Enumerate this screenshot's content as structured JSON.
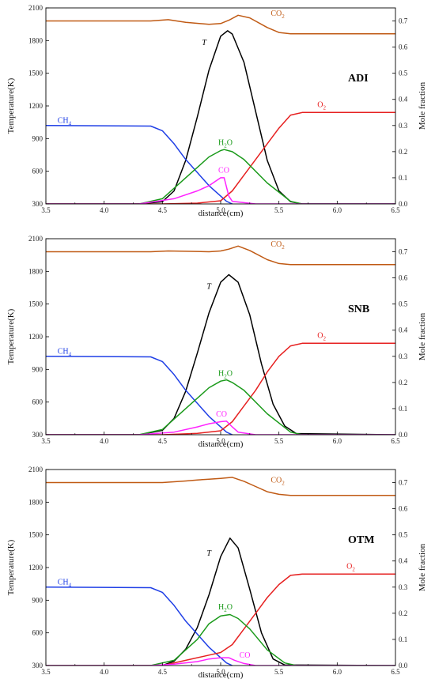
{
  "chart_data": [
    {
      "type": "line",
      "panel_label": "ADI",
      "xlabel": "distance(cm)",
      "ylabel_left": "Temperature(K)",
      "ylabel_right": "Mole fraction",
      "xlim": [
        3.5,
        6.5
      ],
      "xticks": [
        "3.5",
        "4.0",
        "4.5",
        "5.0",
        "5.5",
        "6.0",
        "6.5"
      ],
      "ylim_left": [
        300,
        2100
      ],
      "yticks_left": [
        "300",
        "600",
        "900",
        "1200",
        "1500",
        "1800",
        "2100"
      ],
      "ylim_right": [
        0,
        0.75
      ],
      "yticks_right": [
        "0.0",
        "0.1",
        "0.2",
        "0.3",
        "0.4",
        "0.5",
        "0.6",
        "0.7"
      ],
      "grid": false,
      "series": [
        {
          "name": "T",
          "axis": "left",
          "color": "#000000",
          "label": {
            "text": "T",
            "italic": true
          },
          "x": [
            3.5,
            4.3,
            4.5,
            4.6,
            4.7,
            4.8,
            4.9,
            5.0,
            5.06,
            5.1,
            5.2,
            5.3,
            5.4,
            5.5,
            5.6,
            5.7,
            6.5
          ],
          "y": [
            300,
            300,
            320,
            420,
            700,
            1100,
            1530,
            1840,
            1890,
            1860,
            1600,
            1150,
            700,
            420,
            320,
            300,
            300
          ]
        },
        {
          "name": "CH4",
          "axis": "right",
          "color": "#1f3fe6",
          "label": {
            "text": "CH",
            "sub": "4"
          },
          "x": [
            3.5,
            4.4,
            4.5,
            4.6,
            4.7,
            4.8,
            4.9,
            5.0,
            5.05,
            5.1
          ],
          "y": [
            0.3,
            0.298,
            0.28,
            0.23,
            0.17,
            0.12,
            0.07,
            0.03,
            0.01,
            0.0
          ]
        },
        {
          "name": "O2",
          "axis": "right",
          "color": "#e62020",
          "label": {
            "text": "O",
            "sub": "2"
          },
          "x": [
            3.5,
            4.5,
            4.8,
            5.0,
            5.1,
            5.2,
            5.3,
            5.4,
            5.5,
            5.6,
            5.7,
            6.5
          ],
          "y": [
            0.0,
            0.0,
            0.003,
            0.012,
            0.05,
            0.11,
            0.17,
            0.23,
            0.29,
            0.34,
            0.35,
            0.35
          ]
        },
        {
          "name": "CO2",
          "axis": "right",
          "color": "#c05a14",
          "label": {
            "text": "CO",
            "sub": "2"
          },
          "x": [
            3.5,
            4.4,
            4.55,
            4.7,
            4.9,
            5.0,
            5.08,
            5.15,
            5.25,
            5.4,
            5.5,
            5.6,
            6.5
          ],
          "y": [
            0.7,
            0.7,
            0.705,
            0.695,
            0.687,
            0.69,
            0.705,
            0.722,
            0.712,
            0.675,
            0.656,
            0.651,
            0.651
          ]
        },
        {
          "name": "H2O",
          "axis": "right",
          "color": "#1a9a1a",
          "label": {
            "text": "H",
            "sub": "2",
            "after": "O"
          },
          "x": [
            3.5,
            4.3,
            4.5,
            4.7,
            4.9,
            5.0,
            5.03,
            5.1,
            5.2,
            5.4,
            5.6,
            5.7,
            6.5
          ],
          "y": [
            0.0,
            0.0,
            0.02,
            0.1,
            0.18,
            0.204,
            0.208,
            0.2,
            0.17,
            0.08,
            0.01,
            0.0,
            0.0
          ]
        },
        {
          "name": "CO",
          "axis": "right",
          "color": "#ff22ff",
          "label": {
            "text": "CO"
          },
          "x": [
            3.5,
            4.3,
            4.6,
            4.8,
            4.9,
            5.0,
            5.03,
            5.07,
            5.1,
            5.3,
            6.5
          ],
          "y": [
            0.0,
            0.0,
            0.02,
            0.05,
            0.07,
            0.1,
            0.1,
            0.03,
            0.01,
            0.0,
            0.0
          ]
        }
      ],
      "annotations": [
        {
          "text": "CO",
          "sub": "2",
          "x": 5.43,
          "y": 0.72,
          "axis": "right",
          "color": "#c05a14"
        },
        {
          "text": "T",
          "x": 4.84,
          "y": 1760,
          "axis": "left",
          "color": "#000000",
          "italic": true
        },
        {
          "text": "O",
          "sub": "2",
          "x": 5.83,
          "y": 0.37,
          "axis": "right",
          "color": "#e62020"
        },
        {
          "text": "CH",
          "sub": "4",
          "x": 3.6,
          "y": 0.31,
          "axis": "right",
          "color": "#1f3fe6"
        },
        {
          "text": "H",
          "sub": "2",
          "after": "O",
          "x": 4.98,
          "y": 0.225,
          "axis": "right",
          "color": "#1a9a1a"
        },
        {
          "text": "CO",
          "x": 4.98,
          "y": 0.12,
          "axis": "right",
          "color": "#ff22ff"
        }
      ]
    },
    {
      "type": "line",
      "panel_label": "SNB",
      "xlabel": "distance(cm)",
      "ylabel_left": "Temperature(K)",
      "ylabel_right": "Mole fraction",
      "xlim": [
        3.5,
        6.5
      ],
      "xticks": [
        "3.5",
        "4.0",
        "4.5",
        "5.0",
        "5.5",
        "6.0",
        "6.5"
      ],
      "ylim_left": [
        300,
        2100
      ],
      "yticks_left": [
        "300",
        "600",
        "900",
        "1200",
        "1500",
        "1800",
        "2100"
      ],
      "ylim_right": [
        0,
        0.75
      ],
      "yticks_right": [
        "0.0",
        "0.1",
        "0.2",
        "0.3",
        "0.4",
        "0.5",
        "0.6",
        "0.7"
      ],
      "grid": false,
      "series": [
        {
          "name": "T",
          "axis": "left",
          "color": "#000000",
          "label": {
            "text": "T",
            "italic": true
          },
          "x": [
            3.5,
            4.3,
            4.5,
            4.6,
            4.7,
            4.8,
            4.9,
            5.0,
            5.07,
            5.15,
            5.25,
            5.35,
            5.45,
            5.55,
            5.65,
            6.5
          ],
          "y": [
            300,
            300,
            340,
            450,
            700,
            1050,
            1420,
            1700,
            1770,
            1700,
            1400,
            950,
            580,
            380,
            310,
            300
          ]
        },
        {
          "name": "CH4",
          "axis": "right",
          "color": "#1f3fe6",
          "label": {
            "text": "CH",
            "sub": "4"
          },
          "x": [
            3.5,
            4.4,
            4.5,
            4.6,
            4.7,
            4.8,
            4.9,
            5.0,
            5.05,
            5.1
          ],
          "y": [
            0.3,
            0.298,
            0.28,
            0.23,
            0.17,
            0.12,
            0.07,
            0.03,
            0.01,
            0.0
          ]
        },
        {
          "name": "O2",
          "axis": "right",
          "color": "#e62020",
          "label": {
            "text": "O",
            "sub": "2"
          },
          "x": [
            3.5,
            4.5,
            4.8,
            5.0,
            5.1,
            5.2,
            5.3,
            5.4,
            5.5,
            5.6,
            5.7,
            6.5
          ],
          "y": [
            0.0,
            0.0,
            0.005,
            0.015,
            0.05,
            0.11,
            0.17,
            0.24,
            0.3,
            0.34,
            0.35,
            0.35
          ]
        },
        {
          "name": "CO2",
          "axis": "right",
          "color": "#c05a14",
          "label": {
            "text": "CO",
            "sub": "2"
          },
          "x": [
            3.5,
            4.4,
            4.55,
            4.7,
            4.9,
            5.0,
            5.07,
            5.15,
            5.25,
            5.4,
            5.5,
            5.6,
            6.5
          ],
          "y": [
            0.7,
            0.7,
            0.703,
            0.702,
            0.7,
            0.703,
            0.71,
            0.722,
            0.705,
            0.67,
            0.655,
            0.651,
            0.651
          ]
        },
        {
          "name": "H2O",
          "axis": "right",
          "color": "#1a9a1a",
          "label": {
            "text": "H",
            "sub": "2",
            "after": "O"
          },
          "x": [
            3.5,
            4.3,
            4.5,
            4.7,
            4.9,
            5.0,
            5.05,
            5.1,
            5.2,
            5.4,
            5.6,
            5.7,
            6.5
          ],
          "y": [
            0.0,
            0.0,
            0.02,
            0.1,
            0.18,
            0.205,
            0.21,
            0.2,
            0.17,
            0.08,
            0.01,
            0.0,
            0.0
          ]
        },
        {
          "name": "CO",
          "axis": "right",
          "color": "#ff22ff",
          "label": {
            "text": "CO"
          },
          "x": [
            3.5,
            4.3,
            4.6,
            4.8,
            4.9,
            5.0,
            5.05,
            5.1,
            5.15,
            5.3,
            6.5
          ],
          "y": [
            0.0,
            0.0,
            0.01,
            0.03,
            0.042,
            0.05,
            0.052,
            0.03,
            0.01,
            0.0,
            0.0
          ]
        }
      ],
      "annotations": [
        {
          "text": "CO",
          "sub": "2",
          "x": 5.43,
          "y": 0.72,
          "axis": "right",
          "color": "#c05a14"
        },
        {
          "text": "T",
          "x": 4.88,
          "y": 1640,
          "axis": "left",
          "color": "#000000",
          "italic": true
        },
        {
          "text": "O",
          "sub": "2",
          "x": 5.83,
          "y": 0.37,
          "axis": "right",
          "color": "#e62020"
        },
        {
          "text": "CH",
          "sub": "4",
          "x": 3.6,
          "y": 0.31,
          "axis": "right",
          "color": "#1f3fe6"
        },
        {
          "text": "H",
          "sub": "2",
          "after": "O",
          "x": 4.98,
          "y": 0.225,
          "axis": "right",
          "color": "#1a9a1a"
        },
        {
          "text": "CO",
          "x": 4.96,
          "y": 0.07,
          "axis": "right",
          "color": "#ff22ff"
        }
      ]
    },
    {
      "type": "line",
      "panel_label": "OTM",
      "xlabel": "distance(cm)",
      "ylabel_left": "Temperature(K)",
      "ylabel_right": "Mole fraction",
      "xlim": [
        3.5,
        6.5
      ],
      "xticks": [
        "3.5",
        "4.0",
        "4.5",
        "5.0",
        "5.5",
        "6.0",
        "6.5"
      ],
      "ylim_left": [
        300,
        2100
      ],
      "yticks_left": [
        "300",
        "600",
        "900",
        "1200",
        "1500",
        "1800",
        "2100"
      ],
      "ylim_right": [
        0,
        0.75
      ],
      "yticks_right": [
        "0.0",
        "0.1",
        "0.2",
        "0.3",
        "0.4",
        "0.5",
        "0.6",
        "0.7"
      ],
      "grid": false,
      "series": [
        {
          "name": "T",
          "axis": "left",
          "color": "#000000",
          "label": {
            "text": "T",
            "italic": true
          },
          "x": [
            3.5,
            4.5,
            4.6,
            4.7,
            4.8,
            4.9,
            5.0,
            5.08,
            5.15,
            5.25,
            5.35,
            5.45,
            5.55,
            6.5
          ],
          "y": [
            300,
            300,
            340,
            450,
            650,
            950,
            1300,
            1470,
            1380,
            1000,
            600,
            360,
            305,
            300
          ]
        },
        {
          "name": "CH4",
          "axis": "right",
          "color": "#1f3fe6",
          "label": {
            "text": "CH",
            "sub": "4"
          },
          "x": [
            3.5,
            4.4,
            4.5,
            4.6,
            4.7,
            4.8,
            4.9,
            5.0,
            5.05,
            5.1
          ],
          "y": [
            0.3,
            0.298,
            0.28,
            0.23,
            0.17,
            0.12,
            0.07,
            0.03,
            0.01,
            0.0
          ]
        },
        {
          "name": "O2",
          "axis": "right",
          "color": "#e62020",
          "label": {
            "text": "O",
            "sub": "2"
          },
          "x": [
            3.5,
            4.5,
            4.7,
            4.9,
            5.0,
            5.1,
            5.2,
            5.3,
            5.4,
            5.5,
            5.6,
            5.7,
            6.5
          ],
          "y": [
            0.0,
            0.0,
            0.02,
            0.04,
            0.05,
            0.08,
            0.14,
            0.2,
            0.26,
            0.31,
            0.345,
            0.35,
            0.35
          ]
        },
        {
          "name": "CO2",
          "axis": "right",
          "color": "#c05a14",
          "label": {
            "text": "CO",
            "sub": "2"
          },
          "x": [
            3.5,
            4.5,
            4.6,
            4.7,
            4.8,
            4.9,
            5.0,
            5.1,
            5.2,
            5.3,
            5.4,
            5.5,
            5.6,
            6.5
          ],
          "y": [
            0.7,
            0.7,
            0.703,
            0.706,
            0.71,
            0.713,
            0.716,
            0.72,
            0.705,
            0.685,
            0.665,
            0.655,
            0.651,
            0.651
          ]
        },
        {
          "name": "H2O",
          "axis": "right",
          "color": "#1a9a1a",
          "label": {
            "text": "H",
            "sub": "2",
            "after": "O"
          },
          "x": [
            3.5,
            4.4,
            4.6,
            4.8,
            4.9,
            5.0,
            5.08,
            5.15,
            5.25,
            5.4,
            5.55,
            5.65,
            6.5
          ],
          "y": [
            0.0,
            0.0,
            0.02,
            0.1,
            0.16,
            0.19,
            0.195,
            0.18,
            0.14,
            0.06,
            0.01,
            0.0,
            0.0
          ]
        },
        {
          "name": "CO",
          "axis": "right",
          "color": "#ff22ff",
          "label": {
            "text": "CO"
          },
          "x": [
            3.5,
            4.4,
            4.6,
            4.8,
            4.9,
            5.0,
            5.07,
            5.12,
            5.2,
            5.3,
            6.5
          ],
          "y": [
            0.0,
            0.0,
            0.005,
            0.015,
            0.025,
            0.03,
            0.03,
            0.02,
            0.008,
            0.0,
            0.0
          ]
        }
      ],
      "annotations": [
        {
          "text": "CO",
          "sub": "2",
          "x": 5.43,
          "y": 0.7,
          "axis": "right",
          "color": "#c05a14"
        },
        {
          "text": "T",
          "x": 4.88,
          "y": 1310,
          "axis": "left",
          "color": "#000000",
          "italic": true
        },
        {
          "text": "O",
          "sub": "2",
          "x": 6.08,
          "y": 0.37,
          "axis": "right",
          "color": "#e62020"
        },
        {
          "text": "CH",
          "sub": "4",
          "x": 3.6,
          "y": 0.31,
          "axis": "right",
          "color": "#1f3fe6"
        },
        {
          "text": "H",
          "sub": "2",
          "after": "O",
          "x": 4.98,
          "y": 0.215,
          "axis": "right",
          "color": "#1a9a1a"
        },
        {
          "text": "CO",
          "x": 5.16,
          "y": 0.03,
          "axis": "right",
          "color": "#ff22ff"
        }
      ]
    }
  ]
}
